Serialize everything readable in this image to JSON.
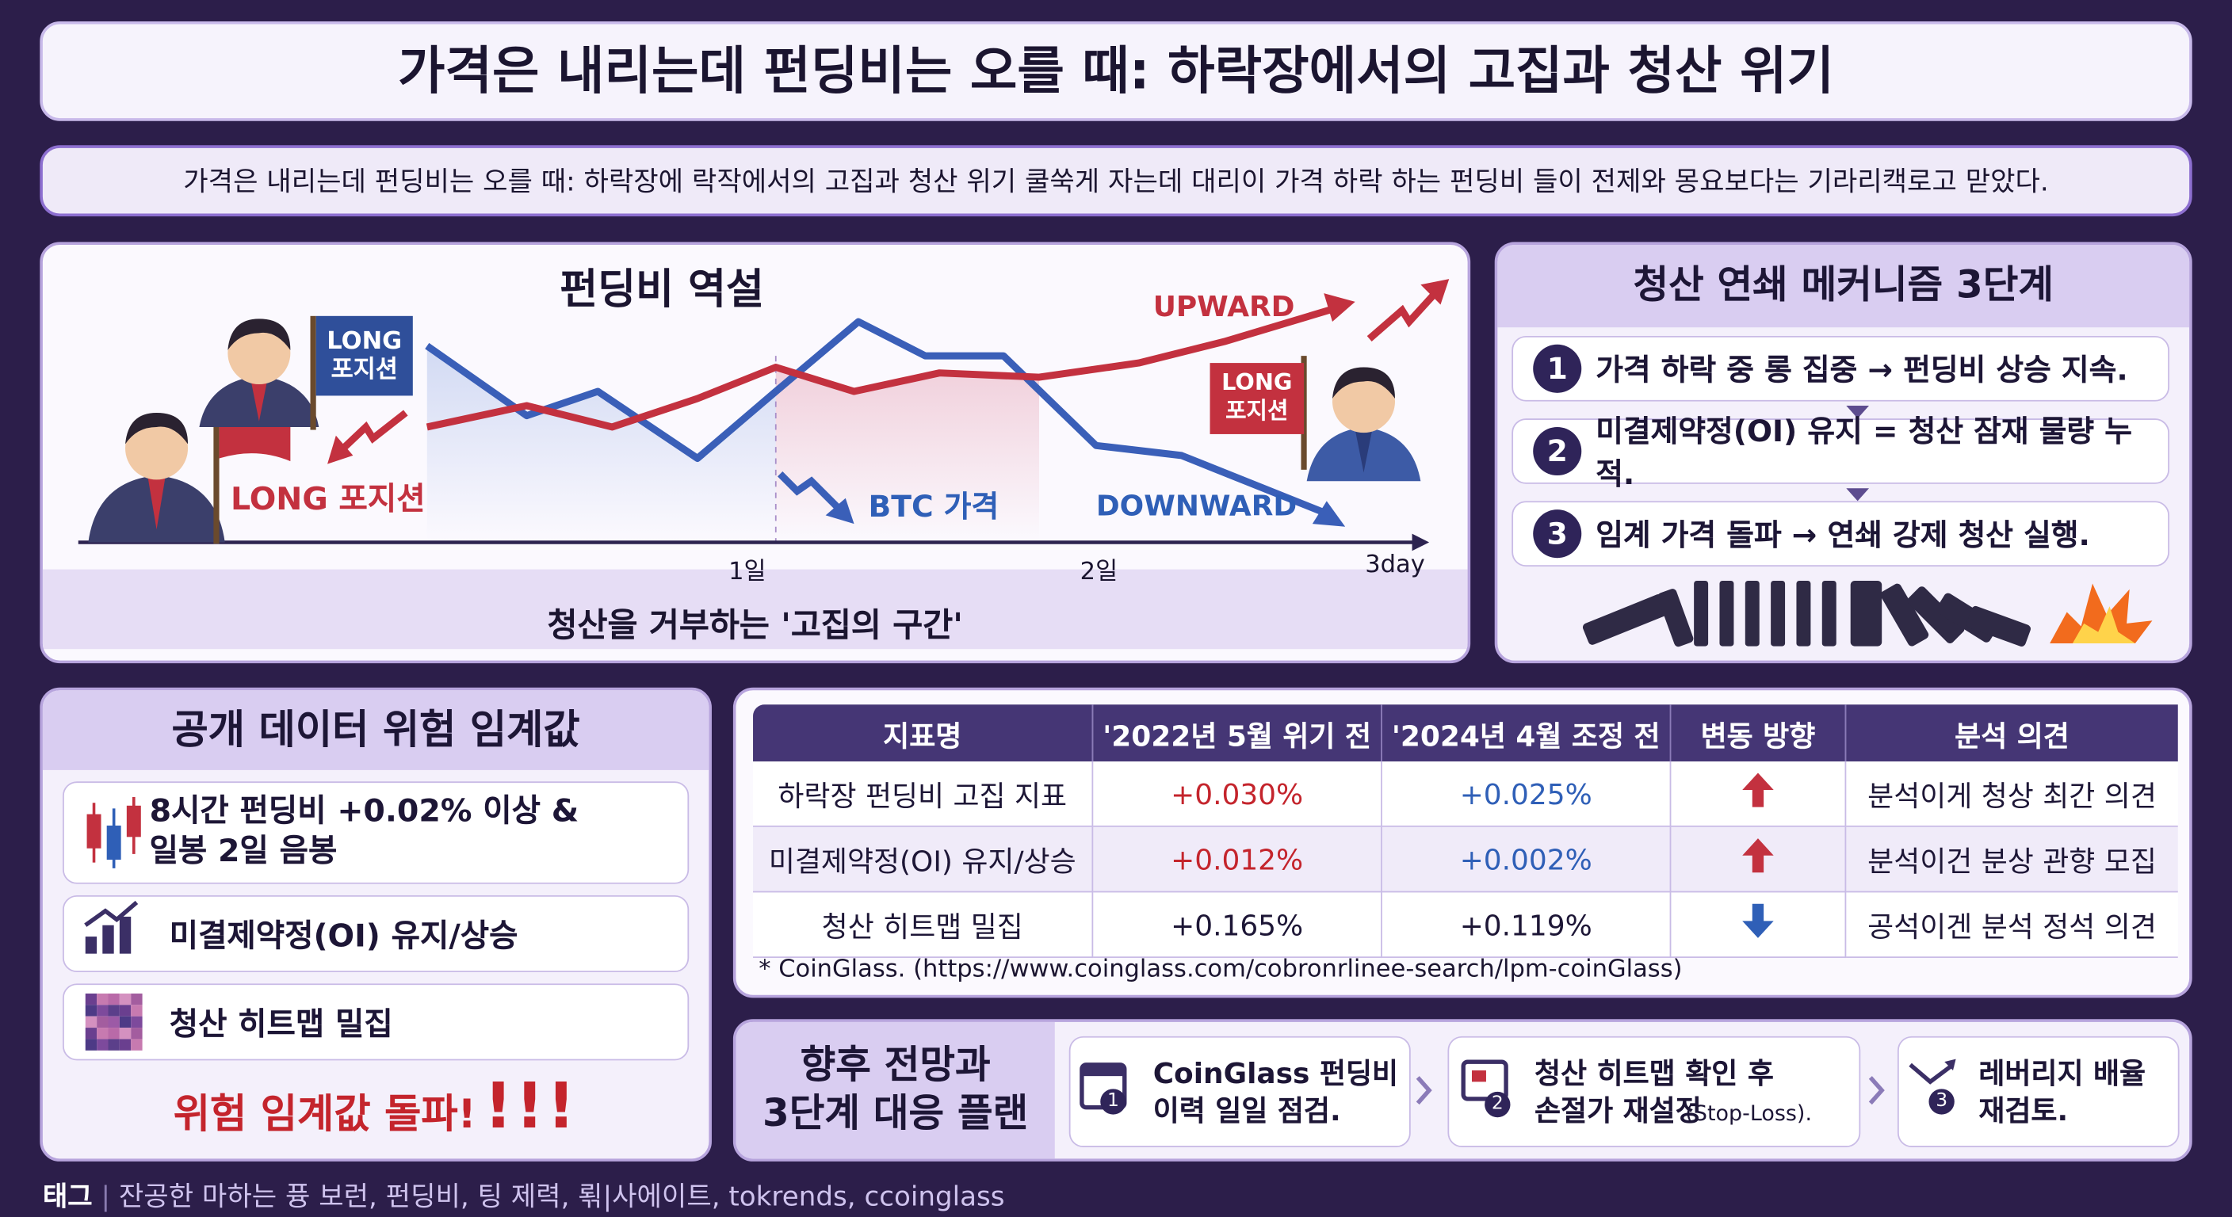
{
  "header": {
    "title": "가격은 내리는데 펀딩비는 오를 때: 하락장에서의 고집과 청산 위기",
    "subtitle": "가격은 내리는데 펀딩비는 오를 때: 하락장에 락작에서의 고집과 청산 위기 쿨쑥게 자는데 대리이 가격 하락 하는 펀딩비 들이 전제와 몽요보다는 기라리캑로고 맏았다."
  },
  "paradox": {
    "title": "펀딩비 역설",
    "flag_label": "LONG\n포지션",
    "long_label": "LONG 포지션",
    "upward": "UPWARD",
    "btc_label": "BTC 가격",
    "downward": "DOWNWARD",
    "sign_label": "LONG\n포지션",
    "axis_labels": [
      "1일",
      "2일",
      "3day"
    ],
    "caption": "청산을 거부하는 '고집의 구간'"
  },
  "mechanism": {
    "title": "청산 연쇄 메커니즘 3단계",
    "steps": [
      {
        "number": "1",
        "text": "가격 하락 중 롱 집중 → 펀딩비 상승 지속."
      },
      {
        "number": "2",
        "text": "미결제약정(OI) 유지 = 청산 잠재 물량 누적."
      },
      {
        "number": "3",
        "text": "임계 가격 돌파 → 연쇄 강제 청산 실행."
      }
    ]
  },
  "thresholds": {
    "title": "공개 데이터 위험 임계값",
    "items": [
      "8시간 펀딩비 +0.02% 이상 &\n일봉 2일 음봉",
      "미결제약정(OI) 유지/상승",
      "청산 히트맵 밀집"
    ],
    "alert": "위험 임계값 돌파!",
    "alert_marks": "!!!"
  },
  "table": {
    "headers": [
      "지표명",
      "'2022년 5월 위기 전",
      "'2024년 4월 조정 전",
      "변동 방향",
      "분석 의견"
    ],
    "rows": [
      {
        "name": "하락장 펀딩비 고집 지표",
        "v2022": "+0.030%",
        "v2024": "+0.025%",
        "direction": "up",
        "opinion": "분석이게 청상 최간 의견"
      },
      {
        "name": "미결제약정(OI) 유지/상승",
        "v2022": "+0.012%",
        "v2024": "+0.002%",
        "direction": "up",
        "opinion": "분석이건 분상 관향 모집"
      },
      {
        "name": "청산 히트맵 밀집",
        "v2022": "+0.165%",
        "v2024": "+0.119%",
        "direction": "down",
        "opinion": "공석이겐 분석 정석 의견"
      }
    ],
    "note": "* CoinGlass. (https://www.coinglass.com/cobronrlinee-search/lpm-coinGlass)"
  },
  "plan": {
    "title": "향후 전망과\n3단계 대응 플랜",
    "steps": [
      {
        "number": "1",
        "text": "CoinGlass 펀딩비\n이력 일일 점검."
      },
      {
        "number": "2",
        "text": "청산 히트맵 확인 후\n손절가 재설정",
        "small": "(Stop-Loss)."
      },
      {
        "number": "3",
        "text": "레버리지 배율\n재검토."
      }
    ]
  },
  "footer": {
    "label": "태그",
    "tags": "잔공한 마하는 퓽 보런, 펀딩비, 팅 제력, 뢲|사에이트, tokrends, ccoinglass"
  }
}
